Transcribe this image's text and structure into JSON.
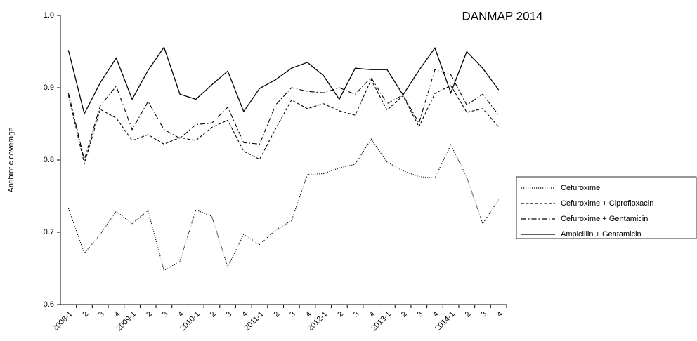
{
  "chart_data": {
    "type": "line",
    "title": "DANMAP 2014",
    "y_label": "Antibiotic coverage",
    "categories": [
      "2008-1",
      "2",
      "3",
      "4",
      "2009-1",
      "2",
      "3",
      "4",
      "2010-1",
      "2",
      "3",
      "4",
      "2011-1",
      "2",
      "3",
      "4",
      "2012-1",
      "2",
      "3",
      "4",
      "2013-1",
      "2",
      "3",
      "4",
      "2014-1",
      "2",
      "3",
      "4"
    ],
    "ylim": [
      0.6,
      1.0
    ],
    "yticks": [
      0.6,
      0.7,
      0.8,
      0.9,
      {
        "value": 1.0,
        "label": "1.0"
      }
    ],
    "series": [
      {
        "name": "Cefuroxime",
        "color": "#000000",
        "style": "dotted",
        "values": [
          0.733,
          0.671,
          0.697,
          0.729,
          0.712,
          0.73,
          0.647,
          0.66,
          0.731,
          0.722,
          0.652,
          0.697,
          0.683,
          0.703,
          0.716,
          0.78,
          0.781,
          0.789,
          0.794,
          0.829,
          0.797,
          0.785,
          0.777,
          0.775,
          0.821,
          0.776,
          0.712,
          0.745
        ]
      },
      {
        "name": "Cefuroxime + Ciprofloxacin",
        "color": "#000000",
        "style": "dashed",
        "values": [
          0.89,
          0.795,
          0.87,
          0.858,
          0.827,
          0.835,
          0.822,
          0.831,
          0.827,
          0.845,
          0.855,
          0.812,
          0.801,
          0.843,
          0.883,
          0.871,
          0.878,
          0.868,
          0.862,
          0.911,
          0.869,
          0.889,
          0.846,
          0.892,
          0.903,
          0.866,
          0.871,
          0.846
        ]
      },
      {
        "name": "Cefuroxime + Gentamicin",
        "color": "#000000",
        "style": "dashdot",
        "values": [
          0.893,
          0.8,
          0.875,
          0.902,
          0.842,
          0.881,
          0.842,
          0.83,
          0.849,
          0.851,
          0.873,
          0.824,
          0.822,
          0.876,
          0.9,
          0.895,
          0.893,
          0.9,
          0.891,
          0.914,
          0.878,
          0.89,
          0.851,
          0.925,
          0.918,
          0.876,
          0.891,
          0.862
        ]
      },
      {
        "name": "Ampicillin + Gentamicin",
        "color": "#000000",
        "style": "solid",
        "values": [
          0.952,
          0.864,
          0.907,
          0.941,
          0.884,
          0.924,
          0.956,
          0.891,
          0.884,
          0.904,
          0.923,
          0.867,
          0.899,
          0.911,
          0.927,
          0.935,
          0.917,
          0.884,
          0.927,
          0.925,
          0.925,
          0.89,
          0.924,
          0.955,
          0.893,
          0.95,
          0.927,
          0.897
        ]
      }
    ]
  }
}
